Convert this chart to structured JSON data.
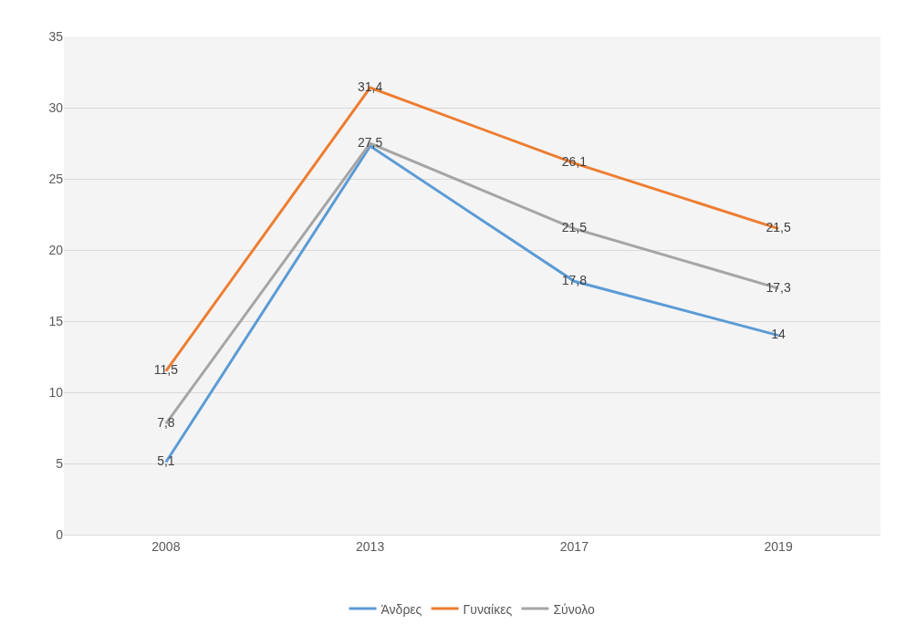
{
  "chart_data": {
    "type": "line",
    "categories": [
      "2008",
      "2013",
      "2017",
      "2019"
    ],
    "series": [
      {
        "name": "Άνδρες",
        "color": "#5b9bd5",
        "values": [
          5.1,
          27.3,
          17.8,
          14
        ],
        "value_labels": [
          "5,1",
          null,
          "17,8",
          "14"
        ]
      },
      {
        "name": "Γυναίκες",
        "color": "#ed7d31",
        "values": [
          11.5,
          31.4,
          26.1,
          21.5
        ],
        "value_labels": [
          "11,5",
          "31,4",
          "26,1",
          "21,5"
        ]
      },
      {
        "name": "Σύνολο",
        "color": "#a5a5a5",
        "values": [
          7.8,
          27.5,
          21.5,
          17.3
        ],
        "value_labels": [
          "7,8",
          "27,5",
          "21,5",
          "17,3"
        ]
      }
    ],
    "ylim": [
      0,
      35
    ],
    "yticks": [
      0,
      5,
      10,
      15,
      20,
      25,
      30,
      35
    ],
    "grid": "y",
    "legend": "bottom",
    "marker": "none",
    "line_style": "solid"
  }
}
